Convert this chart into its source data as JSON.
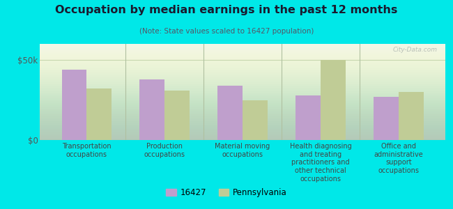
{
  "title": "Occupation by median earnings in the past 12 months",
  "subtitle": "(Note: State values scaled to 16427 population)",
  "categories": [
    "Transportation\noccupations",
    "Production\noccupations",
    "Material moving\noccupations",
    "Health diagnosing\nand treating\npractitioners and\nother technical\noccupations",
    "Office and\nadministrative\nsupport\noccupations"
  ],
  "values_16427": [
    44000,
    38000,
    34000,
    28000,
    27000
  ],
  "values_pa": [
    32000,
    31000,
    25000,
    50000,
    30000
  ],
  "color_16427": "#bf9fcc",
  "color_pa": "#c0cc96",
  "ylim": [
    0,
    60000
  ],
  "yticks": [
    0,
    50000
  ],
  "ytick_labels": [
    "$0",
    "$50k"
  ],
  "chart_bg_top": "#f0f5e8",
  "chart_bg_bottom": "#d8e8c0",
  "outer_background": "#00e8e8",
  "watermark": "City-Data.com",
  "legend_16427": "16427",
  "legend_pa": "Pennsylvania",
  "bar_width": 0.32,
  "separator_color": "#b0c0a0",
  "grid_color": "#c8d8b0"
}
